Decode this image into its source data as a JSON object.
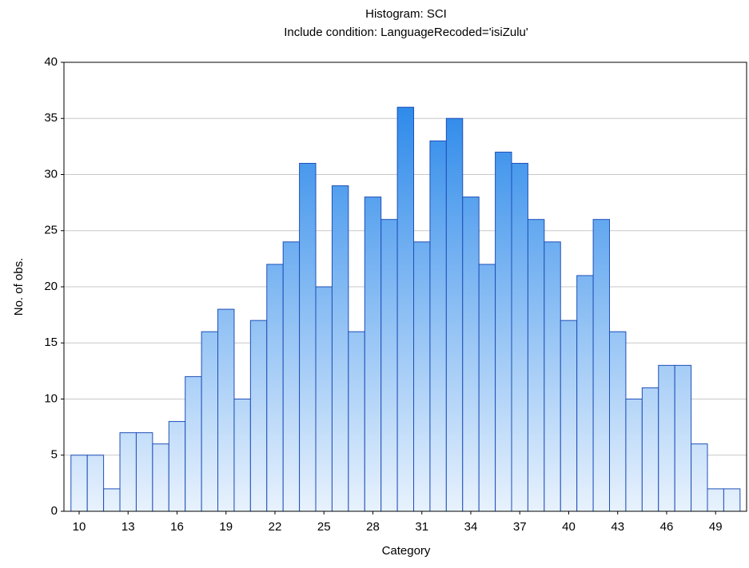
{
  "chart_data": {
    "type": "histogram",
    "title": "Histogram: SCI",
    "subtitle": "Include condition: LanguageRecoded='isiZulu'",
    "x_label": "Category",
    "y_label": "No. of obs.",
    "bins": [
      9.5,
      10.5,
      11.5,
      12.5,
      13.5,
      14.5,
      15.5,
      16.5,
      17.5,
      18.5,
      19.5,
      20.5,
      21.5,
      22.5,
      23.5,
      24.5,
      25.5,
      26.5,
      27.5,
      28.5,
      29.5,
      30.5,
      31.5,
      32.5,
      33.5,
      34.5,
      35.5,
      36.5,
      37.5,
      38.5,
      39.5,
      40.5,
      41.5,
      42.5,
      43.5,
      44.5,
      45.5,
      46.5,
      47.5,
      48.5,
      49.5,
      50.5
    ],
    "values": [
      5,
      5,
      2,
      7,
      7,
      6,
      8,
      12,
      16,
      18,
      10,
      17,
      22,
      24,
      31,
      20,
      29,
      16,
      28,
      26,
      36,
      24,
      33,
      35,
      28,
      22,
      32,
      31,
      26,
      24,
      17,
      21,
      26,
      16,
      10,
      11,
      13,
      13,
      6,
      2,
      2
    ],
    "color": "#1f7fe6",
    "xlim": [
      9.07,
      50.9
    ],
    "xticks": [
      10,
      13,
      16,
      19,
      22,
      25,
      28,
      31,
      34,
      37,
      40,
      43,
      46,
      49
    ],
    "ylim": [
      0,
      40
    ],
    "yticks": [
      0,
      5,
      10,
      15,
      20,
      25,
      30,
      35,
      40
    ],
    "grid": true
  }
}
